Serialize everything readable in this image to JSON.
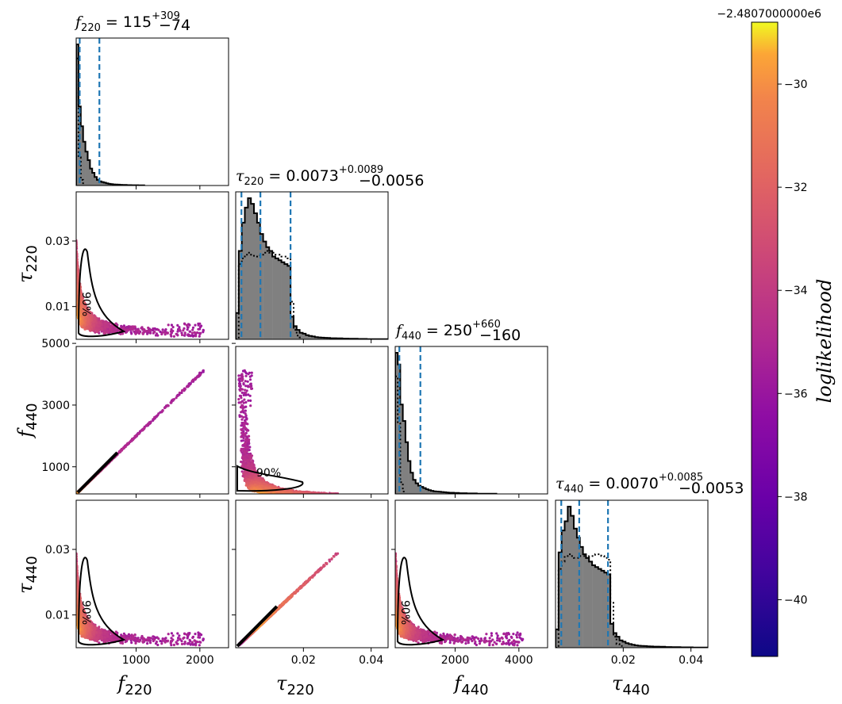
{
  "chart_data": {
    "type": "corner-plot",
    "colors": {
      "hist_fill": "#808080",
      "hist_line": "#000000",
      "quantile_line": "#1f77b4",
      "contour": "#000000"
    },
    "parameters": [
      {
        "key": "f220",
        "symbol": "f",
        "sub": "220",
        "range": [
          60,
          2450
        ]
      },
      {
        "key": "tau220",
        "symbol": "τ",
        "sub": "220",
        "range": [
          0.0,
          0.045
        ]
      },
      {
        "key": "f440",
        "symbol": "f",
        "sub": "440",
        "range": [
          120,
          4900
        ]
      },
      {
        "key": "tau440",
        "symbol": "τ",
        "sub": "440",
        "range": [
          0.0,
          0.045
        ]
      }
    ],
    "titles": [
      {
        "symbol": "f",
        "sub": "220",
        "eq": " = ",
        "value": "115",
        "plus": "+309",
        "minus": "−74"
      },
      {
        "symbol": "τ",
        "sub": "220",
        "eq": " = ",
        "value": "0.0073",
        "plus": "+0.0089",
        "minus": "−0.0056"
      },
      {
        "symbol": "f",
        "sub": "440",
        "eq": " = ",
        "value": "250",
        "plus": "+660",
        "minus": "−160"
      },
      {
        "symbol": "τ",
        "sub": "440",
        "eq": " = ",
        "value": "0.0070",
        "plus": "+0.0085",
        "minus": "−0.0053"
      }
    ],
    "quantiles": [
      [
        41,
        115,
        424
      ],
      [
        0.0017,
        0.0073,
        0.0162
      ],
      [
        90,
        250,
        910
      ],
      [
        0.0017,
        0.007,
        0.0155
      ]
    ],
    "ticks": {
      "f220": {
        "values": [
          1000,
          2000
        ],
        "labels": [
          "1000",
          "2000"
        ]
      },
      "tau220": {
        "values": [
          0.01,
          0.03
        ],
        "labels": [
          "0.01",
          "0.03"
        ],
        "x_values": [
          0.02,
          0.04
        ],
        "x_labels": [
          "0.02",
          "0.04"
        ]
      },
      "f440": {
        "values": [
          1000,
          3000,
          5000
        ],
        "labels": [
          "1000",
          "3000",
          "5000"
        ],
        "x_values": [
          2000,
          4000
        ],
        "x_labels": [
          "2000",
          "4000"
        ]
      },
      "tau440": {
        "values": [
          0.01,
          0.03
        ],
        "labels": [
          "0.01",
          "0.03"
        ],
        "x_values": [
          0.02,
          0.04
        ],
        "x_labels": [
          "0.02",
          "0.04"
        ]
      }
    },
    "histograms": {
      "f220": {
        "edges_start": 60,
        "edges_step": 36,
        "counts": [
          1.0,
          0.56,
          0.42,
          0.31,
          0.24,
          0.18,
          0.12,
          0.09,
          0.06,
          0.04,
          0.03,
          0.025,
          0.02,
          0.015,
          0.012,
          0.01,
          0.008,
          0.007,
          0.006,
          0.005,
          0.004,
          0.004,
          0.003,
          0.003,
          0.002,
          0.002,
          0.002,
          0.001,
          0.001,
          0.001
        ],
        "prior": [
          0.9,
          0.2,
          0.04,
          0.01
        ]
      },
      "tau220": {
        "edges_start": 0.0,
        "edges_step": 0.0009,
        "counts": [
          0.14,
          0.47,
          0.62,
          0.7,
          0.75,
          0.72,
          0.67,
          0.62,
          0.56,
          0.52,
          0.49,
          0.47,
          0.44,
          0.43,
          0.42,
          0.41,
          0.4,
          0.39,
          0.12,
          0.07,
          0.05,
          0.035,
          0.03,
          0.022,
          0.018,
          0.015,
          0.012,
          0.01,
          0.009,
          0.008,
          0.007,
          0.006,
          0.006,
          0.005,
          0.005,
          0.004,
          0.004,
          0.003,
          0.003,
          0.003,
          0.002,
          0.002,
          0.002,
          0.001,
          0.001,
          0.001,
          0.001,
          0.001,
          0.001,
          0.001
        ],
        "prior": [
          0.0,
          0.4,
          0.43,
          0.45,
          0.46,
          0.45,
          0.44,
          0.44,
          0.45,
          0.46,
          0.47,
          0.46,
          0.46,
          0.45,
          0.45,
          0.44,
          0.44,
          0.43,
          0.2,
          0.05,
          0.02,
          0.01
        ]
      },
      "f440": {
        "edges_start": 120,
        "edges_step": 80,
        "counts": [
          0.6,
          0.55,
          0.38,
          0.31,
          0.22,
          0.14,
          0.09,
          0.06,
          0.045,
          0.035,
          0.03,
          0.025,
          0.02,
          0.016,
          0.013,
          0.011,
          0.01,
          0.009,
          0.008,
          0.007,
          0.006,
          0.005,
          0.005,
          0.004,
          0.004,
          0.003,
          0.003,
          0.003,
          0.002,
          0.002,
          0.002,
          0.002,
          0.001,
          0.001,
          0.001,
          0.001,
          0.001,
          0.001,
          0.001,
          0.001
        ],
        "prior": [
          0.5,
          0.3,
          0.05,
          0.01
        ]
      },
      "tau440": {
        "edges_start": 0.0,
        "edges_step": 0.0009,
        "counts": [
          0.1,
          0.52,
          0.64,
          0.69,
          0.77,
          0.72,
          0.65,
          0.6,
          0.55,
          0.51,
          0.49,
          0.47,
          0.45,
          0.44,
          0.43,
          0.42,
          0.41,
          0.4,
          0.13,
          0.08,
          0.06,
          0.04,
          0.033,
          0.025,
          0.02,
          0.016,
          0.013,
          0.011,
          0.01,
          0.009,
          0.008,
          0.007,
          0.006,
          0.006,
          0.005,
          0.005,
          0.004,
          0.004,
          0.003,
          0.003,
          0.003,
          0.002,
          0.002,
          0.002,
          0.002,
          0.001,
          0.001,
          0.001,
          0.001,
          0.001
        ],
        "prior": [
          0.0,
          0.43,
          0.47,
          0.5,
          0.51,
          0.5,
          0.49,
          0.49,
          0.5,
          0.5,
          0.49,
          0.5,
          0.5,
          0.51,
          0.51,
          0.5,
          0.49,
          0.48,
          0.25,
          0.06,
          0.02,
          0.01
        ]
      }
    },
    "contour_labels": [
      "90%",
      "90%",
      "90%",
      "90%",
      "90%",
      "90%"
    ],
    "colorbar": {
      "label": "loglikelihood",
      "offset_label": "−2.4807000000e6",
      "range": [
        -41.1,
        -28.8
      ],
      "ticks": [
        -30,
        -32,
        -34,
        -36,
        -38,
        -40
      ],
      "tick_labels": [
        "−30",
        "−32",
        "−34",
        "−36",
        "−38",
        "−40"
      ],
      "colormap": "plasma"
    }
  }
}
